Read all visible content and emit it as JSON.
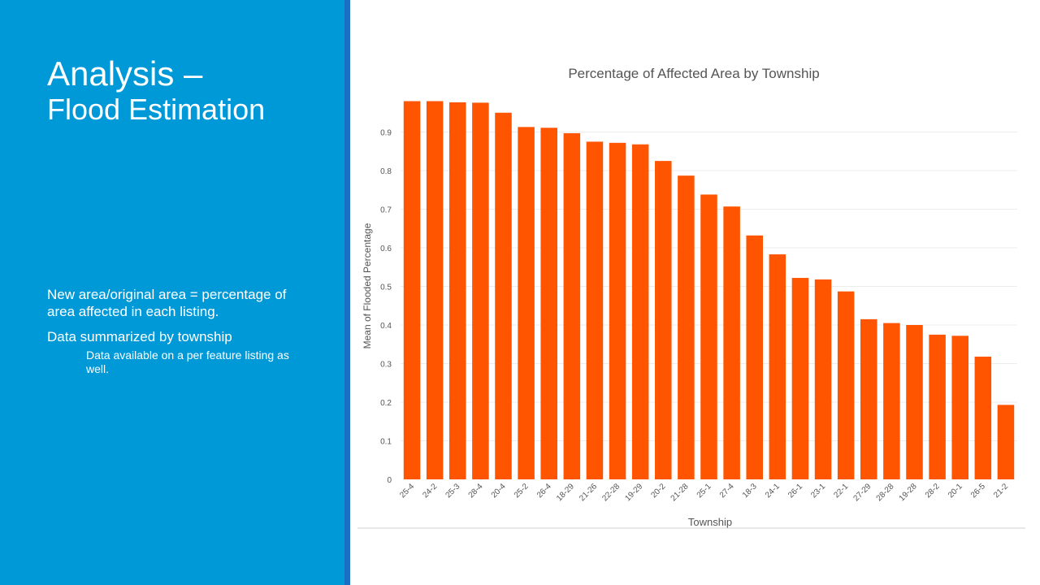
{
  "slide": {
    "title_line1": "Analysis –",
    "title_line2": "Flood Estimation",
    "bullets": [
      "New area/original area = percentage of area affected in each listing.",
      "Data summarized by township"
    ],
    "sub_bullet": "Data available on a per feature listing as well."
  },
  "colors": {
    "panel": "#0099d8",
    "bar": "#ff5400"
  },
  "chart_data": {
    "type": "bar",
    "title": "Percentage of Affected Area by Township",
    "xlabel": "Township",
    "ylabel": "Mean of Flooded Percentage",
    "ylim": [
      0,
      1
    ],
    "yticks": [
      "0",
      "0.1",
      "0.2",
      "0.3",
      "0.4",
      "0.5",
      "0.6",
      "0.7",
      "0.8",
      "0.9"
    ],
    "categories": [
      "25-4",
      "24-2",
      "25-3",
      "28-4",
      "20-4",
      "25-2",
      "26-4",
      "18-29",
      "21-26",
      "22-28",
      "19-29",
      "20-2",
      "21-28",
      "25-1",
      "27-4",
      "18-3",
      "24-1",
      "26-1",
      "23-1",
      "22-1",
      "27-29",
      "28-28",
      "19-28",
      "28-2",
      "20-1",
      "26-5",
      "21-2"
    ],
    "values": [
      0.98,
      0.98,
      0.977,
      0.976,
      0.95,
      0.913,
      0.911,
      0.897,
      0.875,
      0.872,
      0.868,
      0.825,
      0.787,
      0.738,
      0.707,
      0.632,
      0.583,
      0.522,
      0.518,
      0.487,
      0.415,
      0.405,
      0.4,
      0.375,
      0.372,
      0.318,
      0.193
    ],
    "grid": true
  }
}
